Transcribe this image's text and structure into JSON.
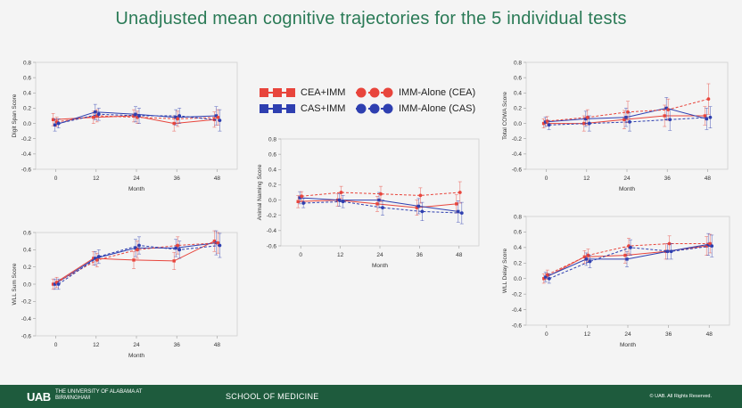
{
  "slide": {
    "title": "Unadjusted mean cognitive trajectories for the 5 individual tests"
  },
  "legend": {
    "items": [
      {
        "label": "CEA+IMM",
        "color": "#e8453c",
        "style": "solid",
        "marker": "square"
      },
      {
        "label": "CAS+IMM",
        "color": "#2e3fb0",
        "style": "solid",
        "marker": "square"
      },
      {
        "label": "IMM-Alone (CEA)",
        "color": "#e8453c",
        "style": "dashed",
        "marker": "circle"
      },
      {
        "label": "IMM-Alone (CAS)",
        "color": "#2e3fb0",
        "style": "dashed",
        "marker": "circle"
      }
    ]
  },
  "footer": {
    "logo_text": "UAB",
    "university": "THE UNIVERSITY OF ALABAMA AT BIRMINGHAM",
    "school": "SCHOOL OF MEDICINE",
    "copyright": "© UAB. All Rights Reserved."
  },
  "colors": {
    "title": "#2a7a56",
    "footer_bg": "#1e5b3d",
    "red": "#e8453c",
    "blue": "#2e3fb0"
  },
  "chart_data": [
    {
      "id": "digit-span",
      "type": "line",
      "ylabel": "Digit Span Score",
      "xlabel": "Month",
      "x": [
        0,
        12,
        24,
        36,
        48
      ],
      "ylim": [
        -0.6,
        0.8
      ],
      "yticks": [
        -0.6,
        -0.4,
        -0.2,
        0.0,
        0.2,
        0.4,
        0.6,
        0.8
      ],
      "series": [
        {
          "name": "CEA+IMM",
          "values": [
            0.05,
            0.08,
            0.1,
            0.0,
            0.05
          ],
          "err": [
            0.08,
            0.08,
            0.08,
            0.1,
            0.1
          ]
        },
        {
          "name": "CAS+IMM",
          "values": [
            -0.02,
            0.15,
            0.12,
            0.08,
            0.1
          ],
          "err": [
            0.08,
            0.1,
            0.1,
            0.1,
            0.12
          ]
        },
        {
          "name": "IMM-Alone (CEA)",
          "values": [
            0.02,
            0.1,
            0.08,
            0.06,
            0.08
          ],
          "err": [
            0.06,
            0.08,
            0.08,
            0.1,
            0.1
          ]
        },
        {
          "name": "IMM-Alone (CAS)",
          "values": [
            0.0,
            0.12,
            0.1,
            0.1,
            0.04
          ],
          "err": [
            0.06,
            0.08,
            0.1,
            0.1,
            0.14
          ]
        }
      ]
    },
    {
      "id": "animal-naming",
      "type": "line",
      "ylabel": "Animal Naming Score",
      "xlabel": "Month",
      "x": [
        0,
        12,
        24,
        36,
        48
      ],
      "ylim": [
        -0.6,
        0.8
      ],
      "yticks": [
        -0.6,
        -0.4,
        -0.2,
        0.0,
        0.2,
        0.4,
        0.6,
        0.8
      ],
      "series": [
        {
          "name": "CEA+IMM",
          "values": [
            -0.02,
            0.0,
            -0.05,
            -0.1,
            -0.05
          ],
          "err": [
            0.08,
            0.08,
            0.1,
            0.1,
            0.12
          ]
        },
        {
          "name": "CAS+IMM",
          "values": [
            0.03,
            0.0,
            0.0,
            -0.08,
            -0.15
          ],
          "err": [
            0.08,
            0.08,
            0.1,
            0.1,
            0.14
          ]
        },
        {
          "name": "IMM-Alone (CEA)",
          "values": [
            0.05,
            0.1,
            0.08,
            0.06,
            0.1
          ],
          "err": [
            0.06,
            0.08,
            0.1,
            0.1,
            0.14
          ]
        },
        {
          "name": "IMM-Alone (CAS)",
          "values": [
            -0.04,
            -0.02,
            -0.1,
            -0.15,
            -0.17
          ],
          "err": [
            0.06,
            0.08,
            0.1,
            0.12,
            0.14
          ]
        }
      ]
    },
    {
      "id": "total-cowa",
      "type": "line",
      "ylabel": "Total COWA Score",
      "xlabel": "Month",
      "x": [
        0,
        12,
        24,
        36,
        48
      ],
      "ylim": [
        -0.6,
        0.8
      ],
      "yticks": [
        -0.6,
        -0.4,
        -0.2,
        0.0,
        0.2,
        0.4,
        0.6,
        0.8
      ],
      "series": [
        {
          "name": "CEA+IMM",
          "values": [
            0.0,
            0.0,
            0.05,
            0.1,
            0.1
          ],
          "err": [
            0.06,
            0.1,
            0.12,
            0.14,
            0.12
          ]
        },
        {
          "name": "CAS+IMM",
          "values": [
            0.02,
            0.06,
            0.08,
            0.2,
            0.06
          ],
          "err": [
            0.06,
            0.1,
            0.12,
            0.14,
            0.14
          ]
        },
        {
          "name": "IMM-Alone (CEA)",
          "values": [
            0.03,
            0.08,
            0.15,
            0.18,
            0.32
          ],
          "err": [
            0.06,
            0.1,
            0.14,
            0.14,
            0.2
          ]
        },
        {
          "name": "IMM-Alone (CAS)",
          "values": [
            -0.02,
            0.0,
            0.02,
            0.05,
            0.08
          ],
          "err": [
            0.06,
            0.1,
            0.12,
            0.14,
            0.14
          ]
        }
      ]
    },
    {
      "id": "wll-sum",
      "type": "line",
      "ylabel": "WLL Sum Score",
      "xlabel": "Month",
      "x": [
        0,
        12,
        24,
        36,
        48
      ],
      "ylim": [
        -0.6,
        0.6
      ],
      "yticks": [
        -0.6,
        -0.4,
        -0.2,
        0.0,
        0.2,
        0.4,
        0.6
      ],
      "series": [
        {
          "name": "CEA+IMM",
          "values": [
            0.0,
            0.3,
            0.28,
            0.27,
            0.5
          ],
          "err": [
            0.06,
            0.08,
            0.1,
            0.1,
            0.12
          ]
        },
        {
          "name": "CAS+IMM",
          "values": [
            0.0,
            0.3,
            0.42,
            0.42,
            0.48
          ],
          "err": [
            0.06,
            0.08,
            0.1,
            0.1,
            0.14
          ]
        },
        {
          "name": "IMM-Alone (CEA)",
          "values": [
            0.02,
            0.28,
            0.4,
            0.45,
            0.48
          ],
          "err": [
            0.06,
            0.08,
            0.1,
            0.1,
            0.12
          ]
        },
        {
          "name": "IMM-Alone (CAS)",
          "values": [
            0.0,
            0.32,
            0.45,
            0.4,
            0.45
          ],
          "err": [
            0.06,
            0.08,
            0.1,
            0.1,
            0.14
          ]
        }
      ]
    },
    {
      "id": "wll-delay",
      "type": "line",
      "ylabel": "WLL Delay Score",
      "xlabel": "Month",
      "x": [
        0,
        12,
        24,
        36,
        48
      ],
      "ylim": [
        -0.6,
        0.8
      ],
      "yticks": [
        -0.6,
        -0.4,
        -0.2,
        0.0,
        0.2,
        0.4,
        0.6,
        0.8
      ],
      "series": [
        {
          "name": "CEA+IMM",
          "values": [
            0.0,
            0.28,
            0.3,
            0.35,
            0.42
          ],
          "err": [
            0.06,
            0.08,
            0.1,
            0.1,
            0.12
          ]
        },
        {
          "name": "CAS+IMM",
          "values": [
            0.02,
            0.25,
            0.25,
            0.35,
            0.44
          ],
          "err": [
            0.06,
            0.08,
            0.1,
            0.1,
            0.14
          ]
        },
        {
          "name": "IMM-Alone (CEA)",
          "values": [
            0.05,
            0.3,
            0.42,
            0.45,
            0.45
          ],
          "err": [
            0.06,
            0.08,
            0.1,
            0.1,
            0.12
          ]
        },
        {
          "name": "IMM-Alone (CAS)",
          "values": [
            0.0,
            0.22,
            0.4,
            0.35,
            0.42
          ],
          "err": [
            0.06,
            0.08,
            0.1,
            0.1,
            0.14
          ]
        }
      ]
    }
  ]
}
